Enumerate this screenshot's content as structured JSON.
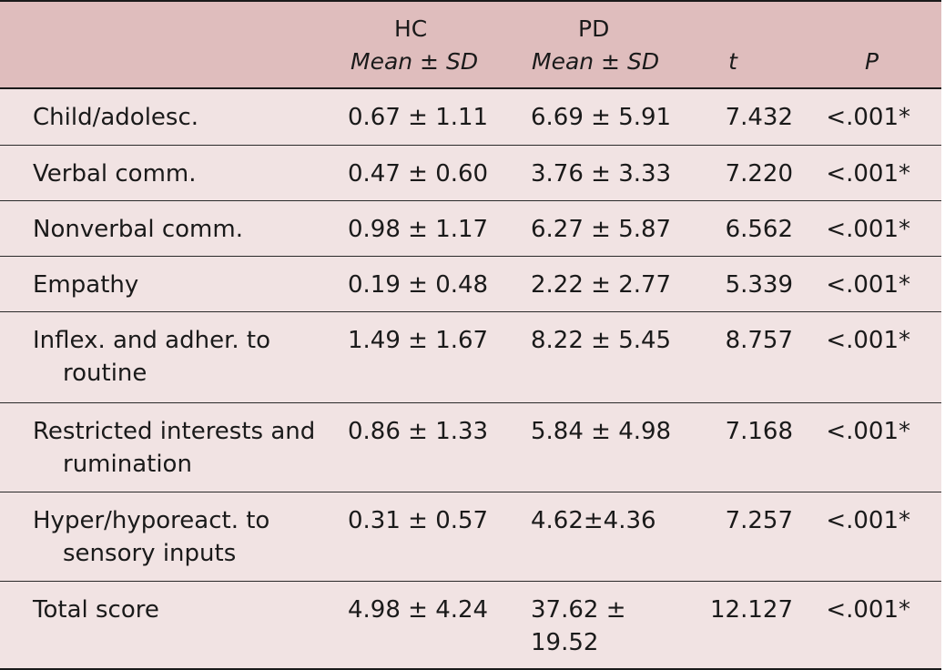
{
  "header": {
    "col1": "",
    "hc_top": "HC",
    "hc_sub": "Mean ± SD",
    "pd_top": "PD",
    "pd_sub": "Mean ± SD",
    "t": "t",
    "p": "P"
  },
  "rows": [
    {
      "label": "Child/adolesc.",
      "hc": "0.67 ± 1.11",
      "pd": "6.69 ± 5.91",
      "t": "7.432",
      "p": "<.001*"
    },
    {
      "label": "Verbal comm.",
      "hc": "0.47 ± 0.60",
      "pd": "3.76 ± 3.33",
      "t": "7.220",
      "p": "<.001*"
    },
    {
      "label": "Nonverbal comm.",
      "hc": "0.98 ± 1.17",
      "pd": "6.27 ± 5.87",
      "t": "6.562",
      "p": "<.001*"
    },
    {
      "label": "Empathy",
      "hc": "0.19 ± 0.48",
      "pd": "2.22 ± 2.77",
      "t": "5.339",
      "p": "<.001*"
    },
    {
      "label": "Inflex. and adher. to routine",
      "hc": "1.49 ± 1.67",
      "pd": "8.22 ± 5.45",
      "t": "8.757",
      "p": "<.001*"
    },
    {
      "label": "Restricted interests and rumination",
      "hc": "0.86 ± 1.33",
      "pd": "5.84 ± 4.98",
      "t": "7.168",
      "p": "<.001*"
    },
    {
      "label": "Hyper/hyporeact. to sensory inputs",
      "hc": "0.31 ± 0.57",
      "pd": "4.62±4.36",
      "t": "7.257",
      "p": "<.001*"
    },
    {
      "label": "Total score",
      "hc": "4.98 ± 4.24",
      "pd": "37.62 ± 19.52",
      "t": "12.127",
      "p": "<.001*"
    }
  ],
  "colors": {
    "header_bg": "#dfbdbd",
    "row_bg": "#f1e3e3",
    "rule": "#1a1a1a"
  }
}
